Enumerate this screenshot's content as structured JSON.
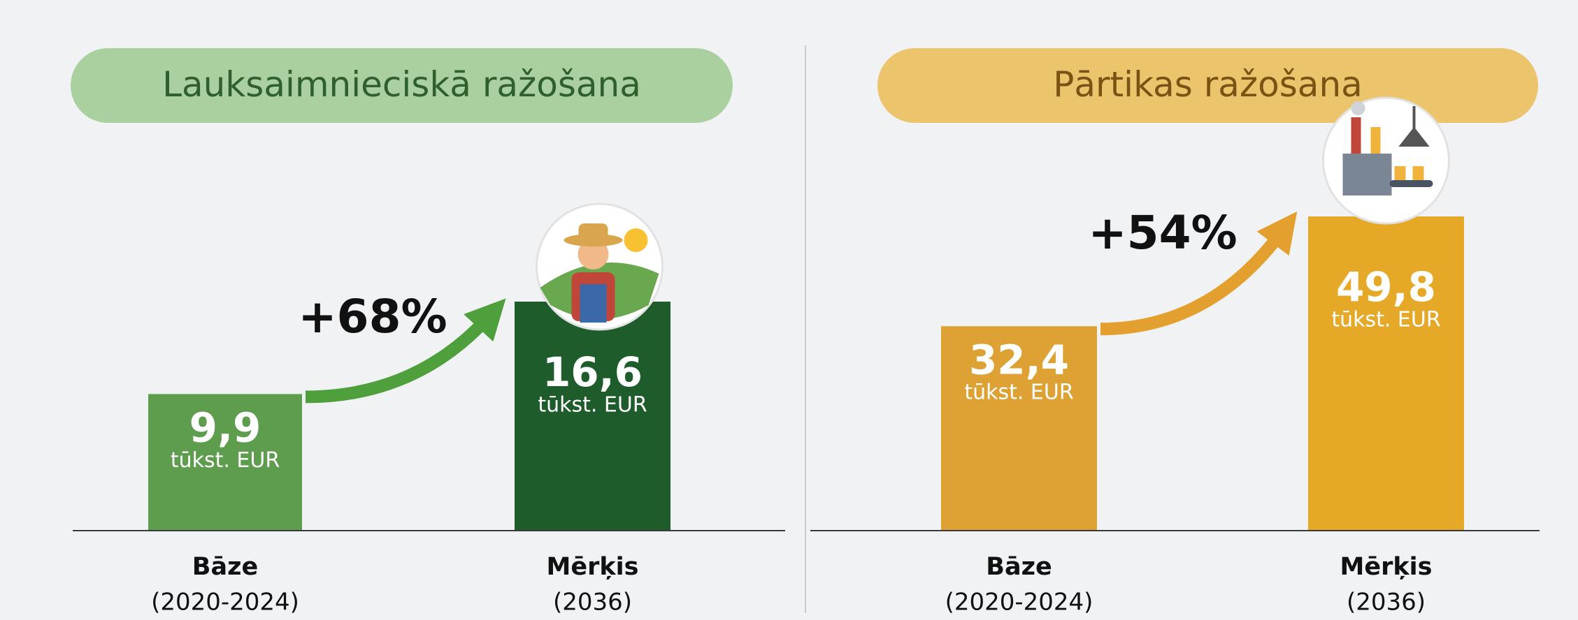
{
  "chart_data": [
    {
      "type": "bar",
      "title": "Lauksaimnieciskā ražošana",
      "categories": [
        "Bāze",
        "Mērķis"
      ],
      "category_notes": [
        "(2020-2024)",
        "(2036)"
      ],
      "values": [
        9.9,
        16.6
      ],
      "value_labels": [
        "9,9",
        "16,6"
      ],
      "unit": "tūkst. EUR",
      "colors": [
        "#5e9c4e",
        "#1e5c2c"
      ],
      "annotation": "+68%",
      "title_color": "#2f5f2d",
      "pill_color": "#abd0a0",
      "arrow_color": "#4f9f3c"
    },
    {
      "type": "bar",
      "title": "Pārtikas ražošana",
      "categories": [
        "Bāze",
        "Mērķis"
      ],
      "category_notes": [
        "(2020-2024)",
        "(2036)"
      ],
      "values": [
        32.4,
        49.8
      ],
      "value_labels": [
        "32,4",
        "49,8"
      ],
      "unit": "tūkst. EUR",
      "colors": [
        "#dea133",
        "#e5a827"
      ],
      "annotation": "+54%",
      "title_color": "#7a5314",
      "pill_color": "#ecc46c",
      "arrow_color": "#e3a02e"
    }
  ]
}
